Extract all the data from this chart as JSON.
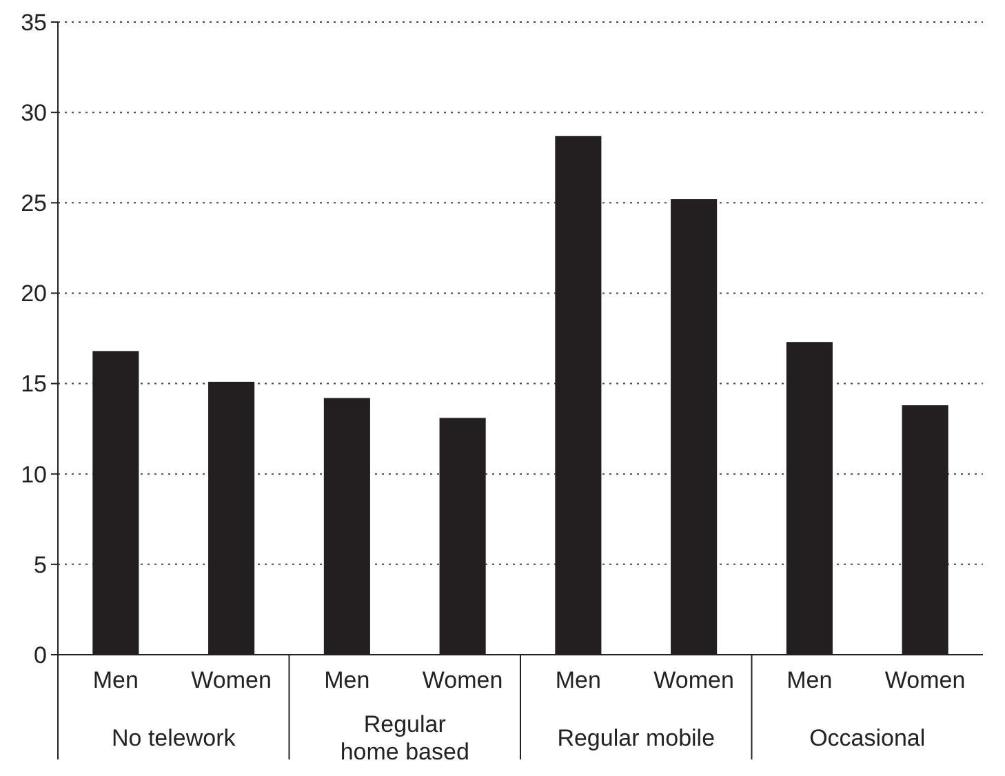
{
  "chart_data": {
    "type": "bar",
    "categories": [
      "Men",
      "Women",
      "Men",
      "Women",
      "Men",
      "Women",
      "Men",
      "Women"
    ],
    "values": [
      16.8,
      15.1,
      14.2,
      13.1,
      28.7,
      25.2,
      17.3,
      13.8
    ],
    "color": "#231f20",
    "ylim": [
      0,
      35
    ],
    "yticks": [
      0,
      5,
      10,
      15,
      20,
      25,
      30,
      35
    ],
    "grid": "y",
    "annotations": [
      "No telework",
      "Regular\nhome based",
      "Regular mobile",
      "Occasional"
    ]
  }
}
